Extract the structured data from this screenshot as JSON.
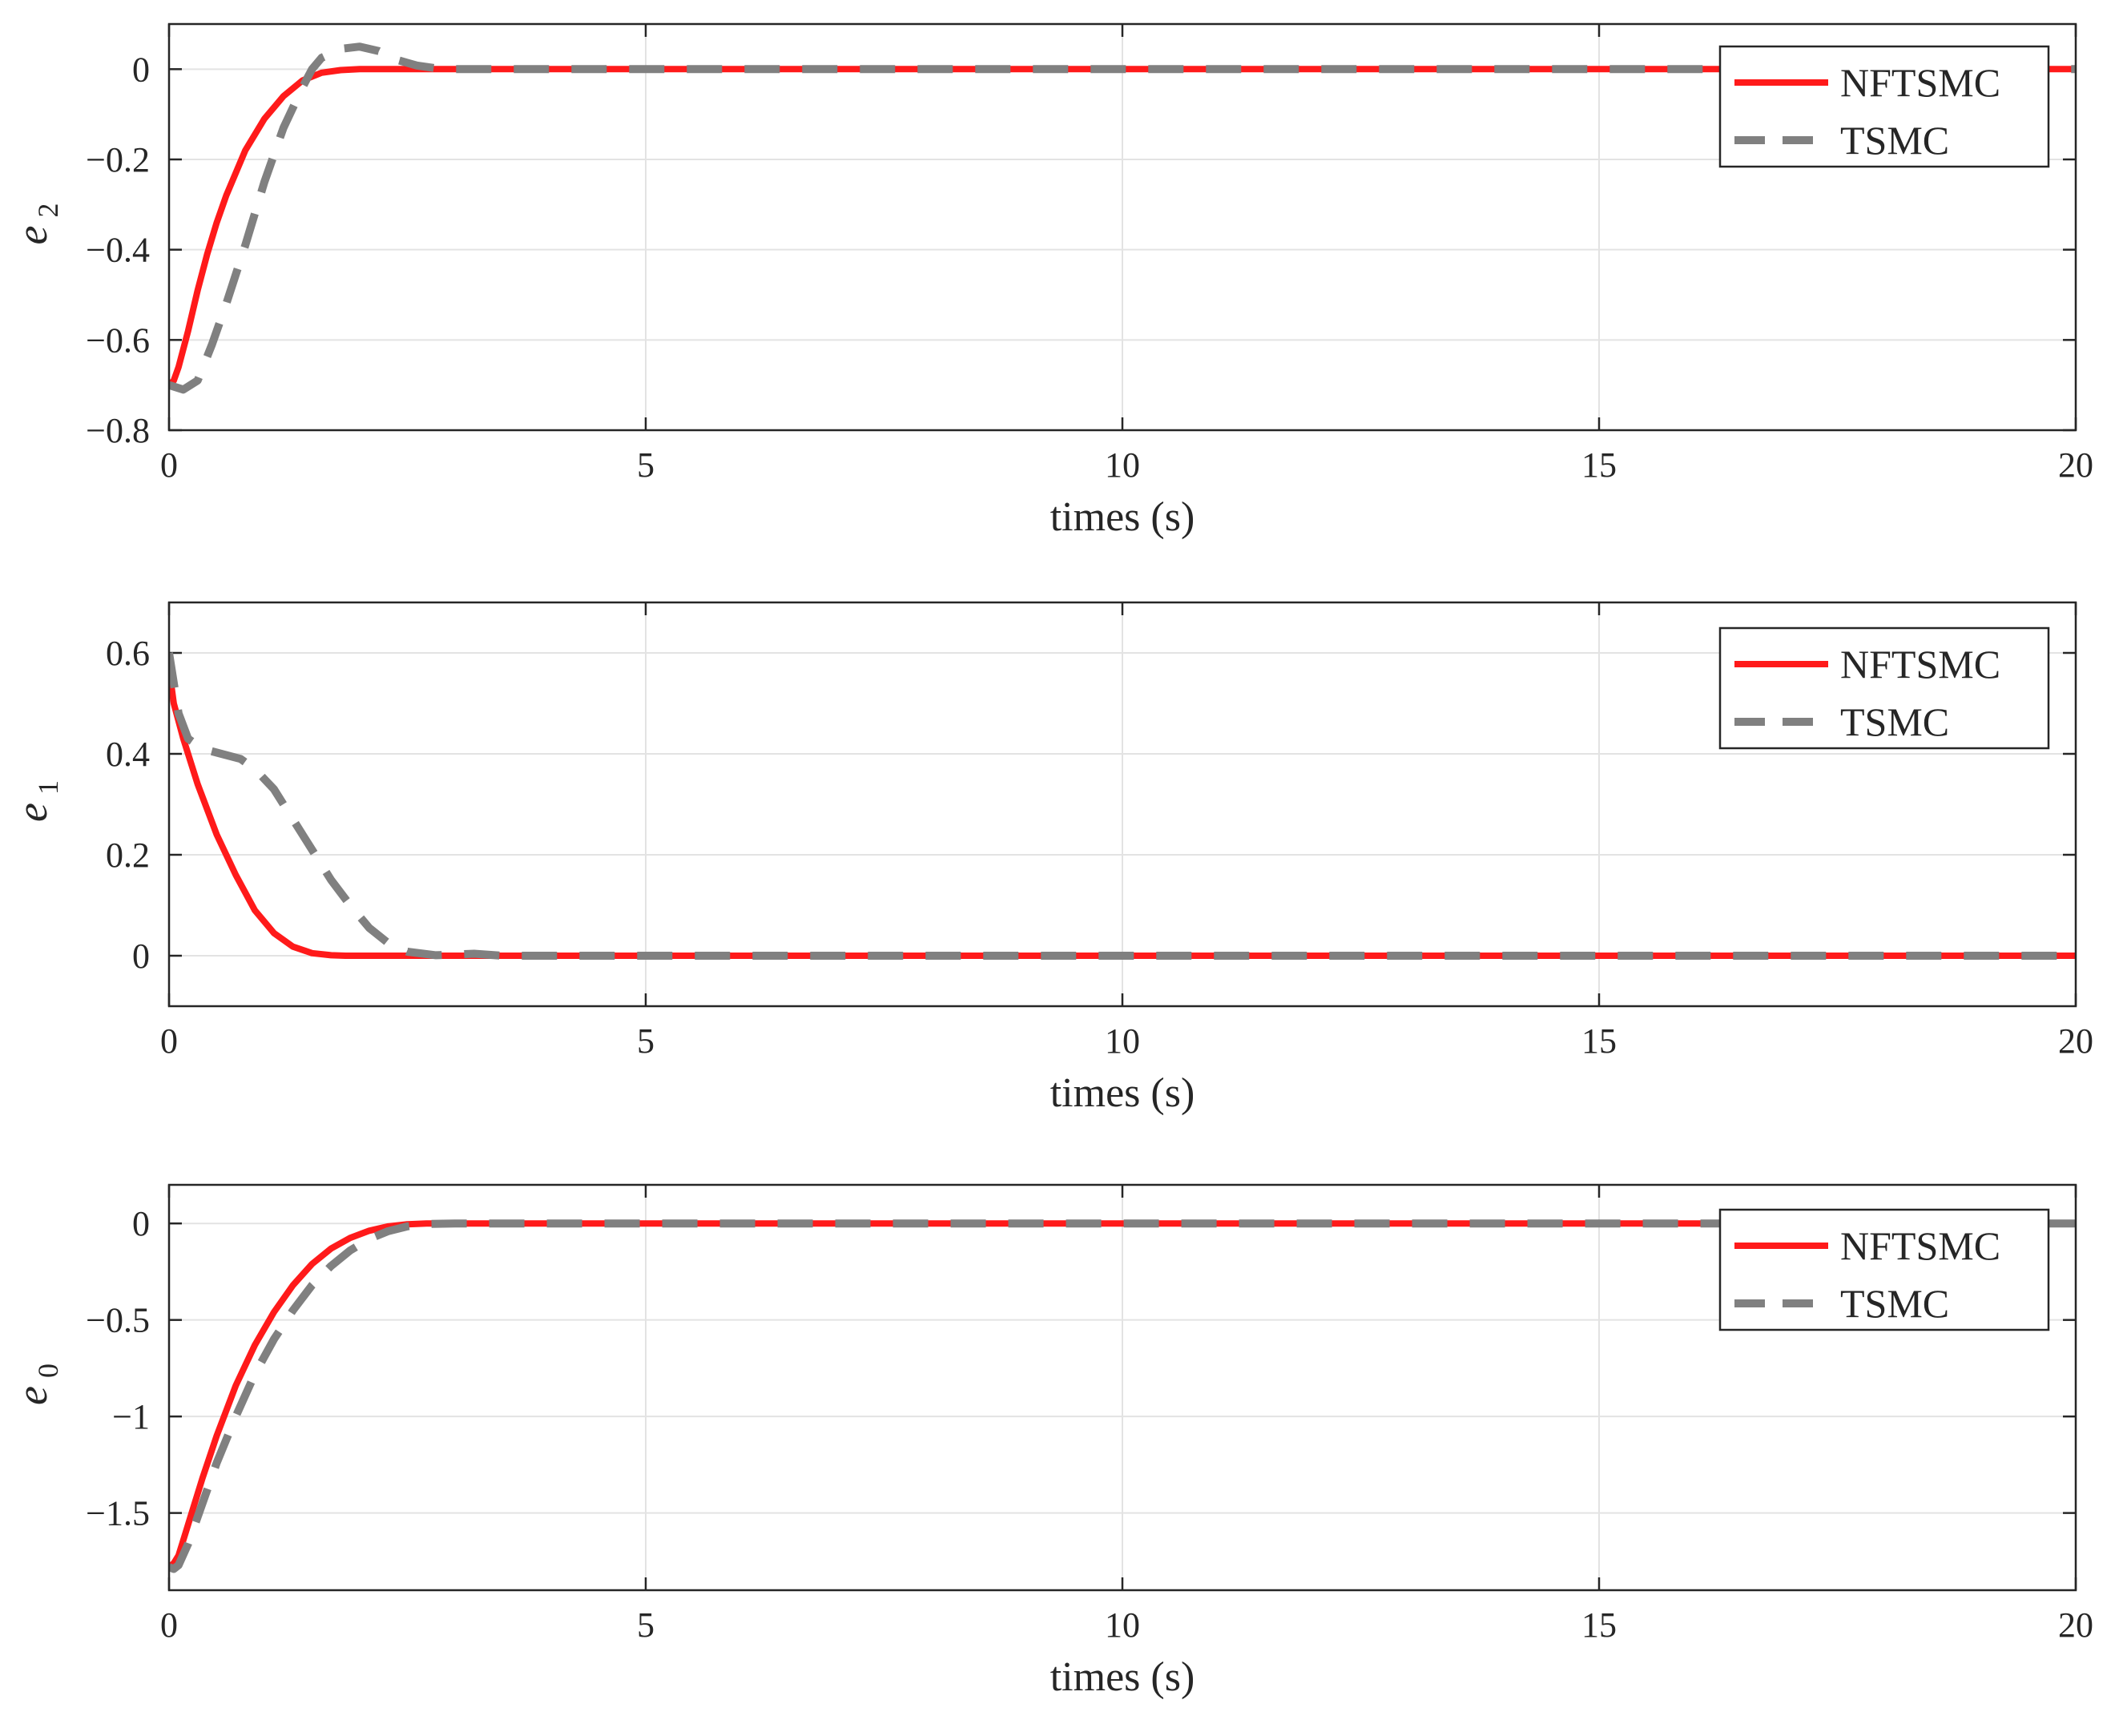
{
  "chart_data": [
    {
      "type": "line",
      "ylabel": {
        "symbol": "e",
        "subscript": "2"
      },
      "xlabel": "times (s)",
      "xlim": [
        0,
        20
      ],
      "ylim": [
        -0.8,
        0.1
      ],
      "xticks": [
        0,
        5,
        10,
        15,
        20
      ],
      "xtick_labels": [
        "0",
        "5",
        "10",
        "15",
        "20"
      ],
      "yticks": [
        -0.8,
        -0.6,
        -0.4,
        -0.2,
        0
      ],
      "ytick_labels": [
        "−0.8",
        "−0.6",
        "−0.4",
        "−0.2",
        "0"
      ],
      "grid": true,
      "legend_position": "top-right",
      "series": [
        {
          "name": "NFTSMC",
          "color": "#ff1a1a",
          "style": "solid",
          "x": [
            0,
            0.05,
            0.1,
            0.2,
            0.3,
            0.4,
            0.5,
            0.6,
            0.8,
            1.0,
            1.2,
            1.4,
            1.6,
            1.8,
            2.0,
            2.3,
            3.0,
            20
          ],
          "y": [
            -0.7,
            -0.69,
            -0.66,
            -0.58,
            -0.49,
            -0.41,
            -0.34,
            -0.28,
            -0.18,
            -0.11,
            -0.06,
            -0.025,
            -0.008,
            -0.002,
            0,
            0,
            0,
            0
          ]
        },
        {
          "name": "TSMC",
          "color": "#808080",
          "style": "dashed",
          "x": [
            0,
            0.15,
            0.3,
            0.45,
            0.6,
            0.8,
            1.0,
            1.2,
            1.4,
            1.5,
            1.6,
            1.8,
            2.0,
            2.2,
            2.4,
            2.6,
            2.8,
            3.0,
            20
          ],
          "y": [
            -0.7,
            -0.71,
            -0.69,
            -0.61,
            -0.52,
            -0.39,
            -0.25,
            -0.13,
            -0.04,
            0.0,
            0.025,
            0.045,
            0.05,
            0.04,
            0.02,
            0.008,
            0.002,
            0,
            0
          ]
        }
      ]
    },
    {
      "type": "line",
      "ylabel": {
        "symbol": "e",
        "subscript": "1"
      },
      "xlabel": "times (s)",
      "xlim": [
        0,
        20
      ],
      "ylim": [
        -0.1,
        0.7
      ],
      "xticks": [
        0,
        5,
        10,
        15,
        20
      ],
      "xtick_labels": [
        "0",
        "5",
        "10",
        "15",
        "20"
      ],
      "yticks": [
        0,
        0.2,
        0.4,
        0.6
      ],
      "ytick_labels": [
        "0",
        "0.2",
        "0.4",
        "0.6"
      ],
      "grid": true,
      "legend_position": "top-right",
      "series": [
        {
          "name": "NFTSMC",
          "color": "#ff1a1a",
          "style": "solid",
          "x": [
            0,
            0.05,
            0.15,
            0.3,
            0.5,
            0.7,
            0.9,
            1.1,
            1.3,
            1.5,
            1.7,
            1.85,
            2.0,
            20
          ],
          "y": [
            0.57,
            0.5,
            0.43,
            0.34,
            0.24,
            0.16,
            0.09,
            0.045,
            0.018,
            0.005,
            0.001,
            0,
            0,
            0
          ]
        },
        {
          "name": "TSMC",
          "color": "#808080",
          "style": "dashed",
          "x": [
            0,
            0.1,
            0.2,
            0.35,
            0.55,
            0.75,
            0.9,
            1.1,
            1.3,
            1.5,
            1.7,
            1.9,
            2.1,
            2.3,
            2.5,
            2.8,
            3.2,
            3.5,
            20
          ],
          "y": [
            0.6,
            0.48,
            0.43,
            0.41,
            0.4,
            0.39,
            0.37,
            0.33,
            0.27,
            0.21,
            0.15,
            0.1,
            0.055,
            0.025,
            0.008,
            0.001,
            0.004,
            0,
            0
          ]
        }
      ]
    },
    {
      "type": "line",
      "ylabel": {
        "symbol": "e",
        "subscript": "0"
      },
      "xlabel": "times (s)",
      "xlim": [
        0,
        20
      ],
      "ylim": [
        -1.9,
        0.2
      ],
      "xticks": [
        0,
        5,
        10,
        15,
        20
      ],
      "xtick_labels": [
        "0",
        "5",
        "10",
        "15",
        "20"
      ],
      "yticks": [
        -1.5,
        -1,
        -0.5,
        0
      ],
      "ytick_labels": [
        "−1.5",
        "−1",
        "−0.5",
        "0"
      ],
      "grid": true,
      "legend_position": "top-right",
      "series": [
        {
          "name": "NFTSMC",
          "color": "#ff1a1a",
          "style": "solid",
          "x": [
            0,
            0.05,
            0.1,
            0.2,
            0.35,
            0.5,
            0.7,
            0.9,
            1.1,
            1.3,
            1.5,
            1.7,
            1.9,
            2.1,
            2.3,
            2.5,
            2.7,
            3.0,
            20
          ],
          "y": [
            -1.78,
            -1.76,
            -1.72,
            -1.56,
            -1.32,
            -1.1,
            -0.84,
            -0.63,
            -0.46,
            -0.32,
            -0.21,
            -0.13,
            -0.075,
            -0.038,
            -0.015,
            -0.004,
            0,
            0,
            0
          ]
        },
        {
          "name": "TSMC",
          "color": "#808080",
          "style": "dashed",
          "x": [
            0,
            0.05,
            0.1,
            0.2,
            0.35,
            0.5,
            0.7,
            0.9,
            1.1,
            1.3,
            1.5,
            1.7,
            1.9,
            2.1,
            2.3,
            2.5,
            2.7,
            3.0,
            20
          ],
          "y": [
            -1.78,
            -1.79,
            -1.77,
            -1.66,
            -1.45,
            -1.24,
            -1.0,
            -0.78,
            -0.6,
            -0.45,
            -0.32,
            -0.22,
            -0.14,
            -0.08,
            -0.04,
            -0.015,
            -0.003,
            0,
            0
          ]
        }
      ]
    }
  ]
}
